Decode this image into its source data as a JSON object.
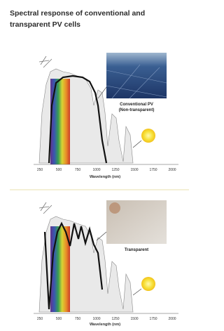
{
  "title": [
    "Spectral response of conventional and",
    "transparent PV cells"
  ],
  "panels": [
    {
      "photo_label": [
        "Conventional PV",
        "(Non-transparent)"
      ],
      "x_ticks": [
        250,
        500,
        750,
        1000,
        1250,
        1500,
        1750,
        2000
      ],
      "x_label": "Wavelength (nm)"
    },
    {
      "photo_label": [
        "Transparent"
      ],
      "x_ticks": [
        250,
        500,
        750,
        1000,
        1250,
        1500,
        1750,
        2000
      ],
      "x_label": "Wavelength (nm)"
    }
  ]
}
